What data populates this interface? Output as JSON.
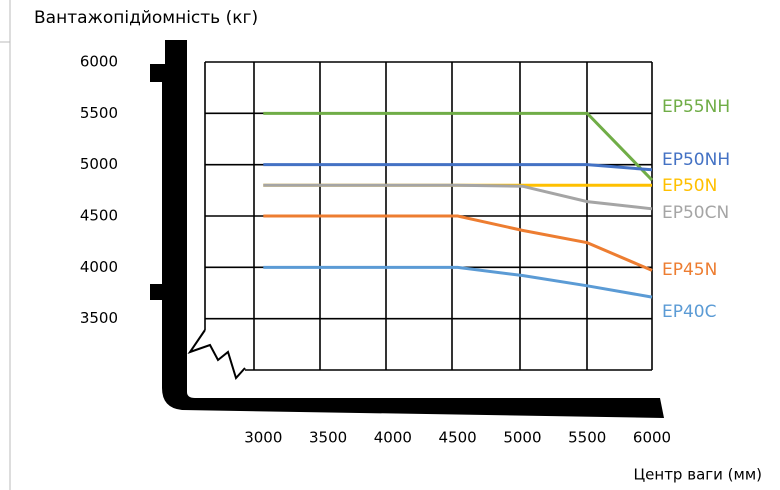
{
  "chart_data": {
    "type": "line",
    "title": "Вантажопідйомність (кг)",
    "x_label": "Центр ваги (мм)",
    "x": [
      3000,
      4500,
      5000,
      5500,
      6000
    ],
    "xlim": [
      2550,
      6000
    ],
    "xticks": [
      3000,
      3500,
      4000,
      4500,
      5000,
      5500,
      6000
    ],
    "ylim": [
      3000,
      6000
    ],
    "yticks": [
      3500,
      4000,
      4500,
      5000,
      5500,
      6000
    ],
    "grid": true,
    "series": [
      {
        "name": "EP55NH",
        "color": "#70ad47",
        "values": [
          5500,
          5500,
          5500,
          5500,
          4850
        ]
      },
      {
        "name": "EP50NH",
        "color": "#4472c4",
        "values": [
          5000,
          5000,
          5000,
          5000,
          4950
        ]
      },
      {
        "name": "EP50N",
        "color": "#ffc000",
        "values": [
          4800,
          4800,
          4800,
          4800,
          4800
        ]
      },
      {
        "name": "EP50CN",
        "color": "#a5a5a5",
        "values": [
          4800,
          4800,
          4790,
          4640,
          4570
        ]
      },
      {
        "name": "EP45N",
        "color": "#ed7d31",
        "values": [
          4500,
          4500,
          4360,
          4240,
          3970
        ]
      },
      {
        "name": "EP40C",
        "color": "#5b9bd5",
        "values": [
          4000,
          4000,
          3920,
          3820,
          3710
        ]
      }
    ]
  }
}
